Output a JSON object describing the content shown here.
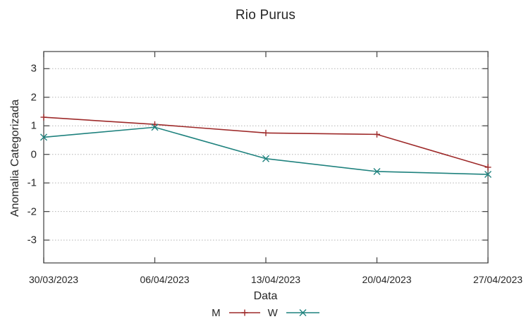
{
  "chart_data": {
    "type": "line",
    "title": "Rio Purus",
    "xlabel": "Data",
    "ylabel": "Anomalia Categorizada",
    "categories": [
      "30/03/2023",
      "06/04/2023",
      "13/04/2023",
      "20/04/2023",
      "27/04/2023"
    ],
    "series": [
      {
        "name": "M",
        "color": "#9e2a2a",
        "marker": "plus",
        "values": [
          1.3,
          1.05,
          0.75,
          0.7,
          -0.45
        ]
      },
      {
        "name": "W",
        "color": "#1f827e",
        "marker": "cross",
        "values": [
          0.6,
          0.95,
          -0.15,
          -0.6,
          -0.7
        ]
      }
    ],
    "yticks": [
      "3",
      "2",
      "1",
      "0",
      "-1",
      "-2",
      "-3"
    ],
    "ylim": [
      -3.8,
      3.6
    ],
    "grid": "horizontal-dotted",
    "legend_position": "bottom-center"
  },
  "colors": {
    "border": "#4d4d4d",
    "grid": "#b3b3b3",
    "text": "#262626"
  }
}
